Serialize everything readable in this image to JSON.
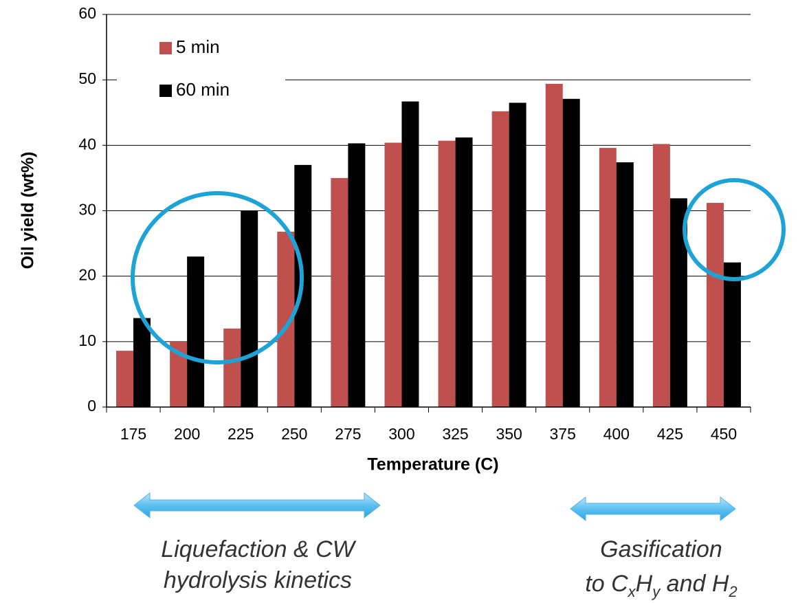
{
  "chart_data": {
    "type": "bar",
    "xlabel": "Temperature (C)",
    "ylabel": "Oil yield (wt%)",
    "categories": [
      "175",
      "200",
      "225",
      "250",
      "275",
      "300",
      "325",
      "350",
      "375",
      "400",
      "425",
      "450"
    ],
    "series": [
      {
        "name": "5 min",
        "color": "#c0504d",
        "values": [
          8.6,
          10,
          12,
          26.8,
          35,
          40.4,
          40.7,
          45.2,
          49.4,
          39.6,
          40.2,
          31.2
        ]
      },
      {
        "name": "60 min",
        "color": "#000000",
        "values": [
          13.6,
          23,
          30,
          37,
          40.3,
          46.7,
          41.2,
          46.5,
          47.1,
          37.4,
          31.9,
          22.1
        ]
      }
    ],
    "ylim": [
      0,
      60
    ],
    "yticks": [
      0,
      10,
      20,
      30,
      40,
      50,
      60
    ],
    "grid": true,
    "legend": "upper left",
    "annotations": [
      {
        "lines": [
          [
            {
              "text": "Liquefaction & CW"
            }
          ],
          [
            {
              "text": "hydrolysis kinetics"
            }
          ]
        ]
      },
      {
        "lines": [
          [
            {
              "text": "Gasification"
            }
          ],
          [
            {
              "text": "to C"
            },
            {
              "text": "x",
              "sub": true
            },
            {
              "text": "H"
            },
            {
              "text": "y",
              "sub": true
            },
            {
              "text": " and H"
            },
            {
              "text": "2",
              "sub": true
            }
          ]
        ]
      }
    ]
  }
}
